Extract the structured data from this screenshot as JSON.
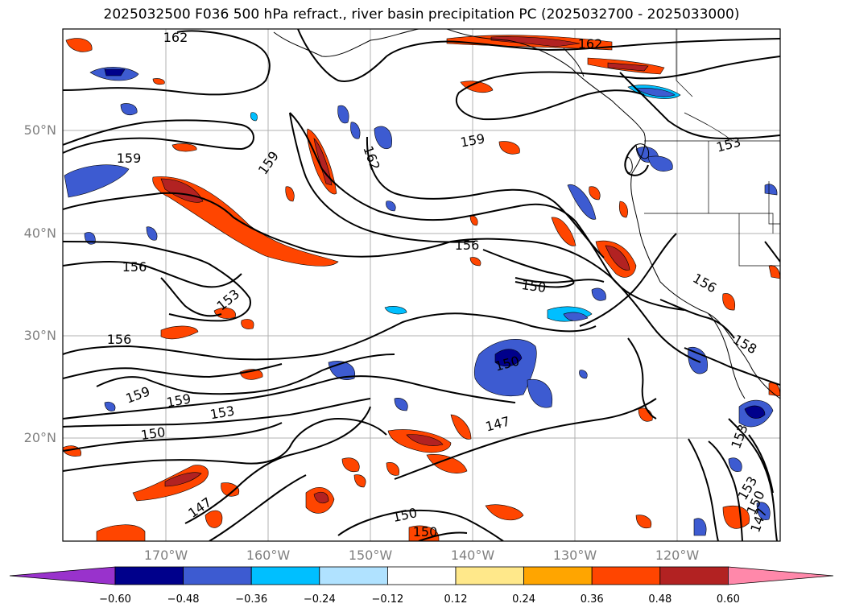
{
  "title": "2025032500 F036 500 hPa refract., river basin precipitation PC (2025032700 - 2025033000)",
  "map": {
    "region": "Northeast Pacific / western North America",
    "lat_labels": [
      "50°N",
      "40°N",
      "30°N",
      "20°N"
    ],
    "lon_labels": [
      "170°W",
      "160°W",
      "150°W",
      "140°W",
      "130°W",
      "120°W"
    ],
    "contour_labels": [
      "162",
      "162",
      "159",
      "159",
      "159",
      "153",
      "156",
      "156",
      "150",
      "153",
      "156",
      "150",
      "159",
      "159",
      "153",
      "150",
      "147",
      "147",
      "150",
      "156",
      "158",
      "153",
      "150",
      "147",
      "153",
      "162"
    ]
  },
  "colorbar": {
    "ticks": [
      "−0.60",
      "−0.48",
      "−0.36",
      "−0.24",
      "−0.12",
      "0.12",
      "0.24",
      "0.36",
      "0.48",
      "0.60"
    ],
    "colors": [
      "#9932cc",
      "#00008b",
      "#3d5bd1",
      "#00bfff",
      "#b0e2ff",
      "#ffffff",
      "#ffe88a",
      "#ffa500",
      "#ff4500",
      "#b22222",
      "#ff88aa"
    ]
  }
}
